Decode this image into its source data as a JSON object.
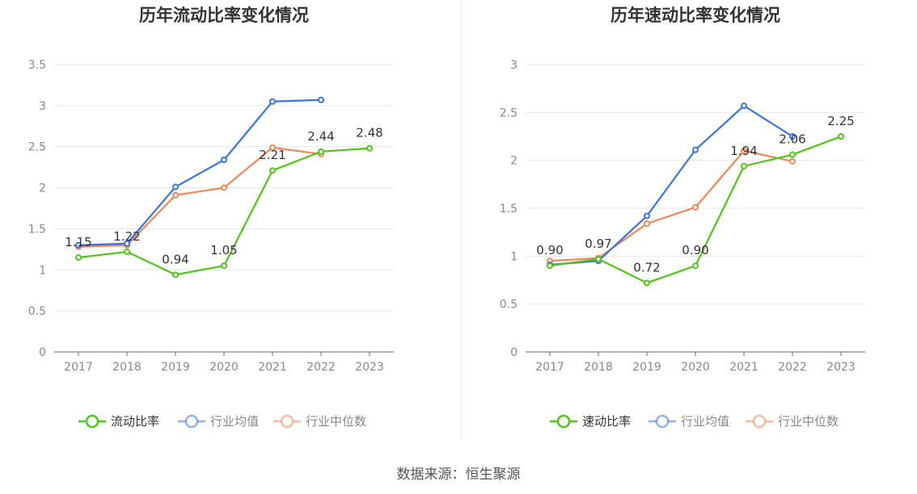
{
  "source": "数据来源：恒生聚源",
  "colors": {
    "company": "#52c41a",
    "avg": "#3b73e0",
    "median": "#f0875a",
    "grid": "#e6e6e6",
    "axis": "#666666",
    "tick": "#888888"
  },
  "chart_data": [
    {
      "type": "line",
      "title": "历年流动比率变化情况",
      "categories": [
        "2017",
        "2018",
        "2019",
        "2020",
        "2021",
        "2022",
        "2023"
      ],
      "yticks": [
        "0",
        "0.5",
        "1",
        "1.5",
        "2",
        "2.5",
        "3",
        "3.5"
      ],
      "ylim": [
        0,
        3.5
      ],
      "grid": true,
      "legend_position": "bottom",
      "series": [
        {
          "name": "流动比率",
          "color": "#52c41a",
          "values": [
            1.15,
            1.22,
            0.94,
            1.05,
            2.21,
            2.44,
            2.48
          ],
          "labels": [
            "1.15",
            "1.22",
            "0.94",
            "1.05",
            "2.21",
            "2.44",
            "2.48"
          ]
        },
        {
          "name": "行业均值",
          "color": "#3b73e0",
          "values": [
            1.3,
            1.32,
            2.01,
            2.34,
            3.05,
            3.07,
            null
          ]
        },
        {
          "name": "行业中位数",
          "color": "#f0875a",
          "values": [
            1.28,
            1.3,
            1.91,
            2.0,
            2.49,
            2.41,
            null
          ]
        }
      ]
    },
    {
      "type": "line",
      "title": "历年速动比率变化情况",
      "categories": [
        "2017",
        "2018",
        "2019",
        "2020",
        "2021",
        "2022",
        "2023"
      ],
      "yticks": [
        "0",
        "0.5",
        "1",
        "1.5",
        "2",
        "2.5",
        "3"
      ],
      "ylim": [
        0,
        3
      ],
      "grid": true,
      "legend_position": "bottom",
      "series": [
        {
          "name": "速动比率",
          "color": "#52c41a",
          "values": [
            0.9,
            0.97,
            0.72,
            0.9,
            1.94,
            2.06,
            2.25
          ],
          "labels": [
            "0.90",
            "0.97",
            "0.72",
            "0.90",
            "1.94",
            "2.06",
            "2.25"
          ]
        },
        {
          "name": "行业均值",
          "color": "#3b73e0",
          "values": [
            0.91,
            0.95,
            1.42,
            2.11,
            2.57,
            2.25,
            null
          ]
        },
        {
          "name": "行业中位数",
          "color": "#f0875a",
          "values": [
            0.95,
            0.98,
            1.34,
            1.51,
            2.1,
            1.99,
            null
          ]
        }
      ]
    }
  ]
}
